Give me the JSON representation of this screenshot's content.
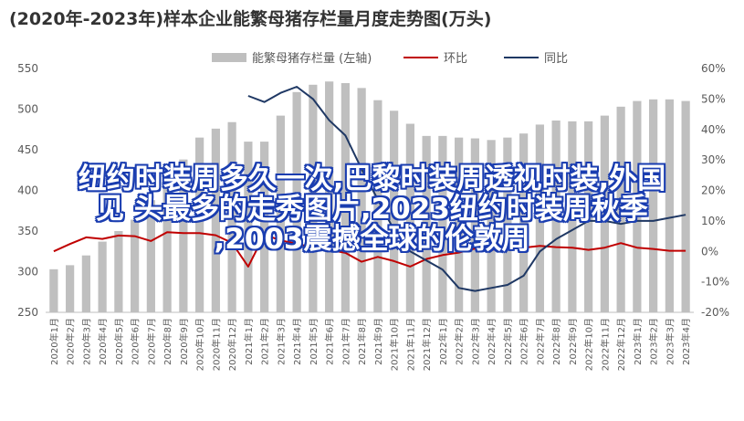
{
  "chart_data": {
    "type": "bar",
    "title": "(2020年-2023年)样本企业能繁母猪存栏量月度走势图(万头)",
    "categories": [
      "2020年1月",
      "2020年2月",
      "2020年3月",
      "2020年4月",
      "2020年5月",
      "2020年6月",
      "2020年7月",
      "2020年8月",
      "2020年9月",
      "2020年10月",
      "2020年11月",
      "2020年12月",
      "2021年1月",
      "2021年2月",
      "2021年3月",
      "2021年4月",
      "2021年5月",
      "2021年6月",
      "2021年7月",
      "2021年8月",
      "2021年9月",
      "2021年10月",
      "2021年11月",
      "2021年12月",
      "2022年1月",
      "2022年2月",
      "2022年3月",
      "2022年4月",
      "2022年5月",
      "2022年6月",
      "2022年7月",
      "2022年8月",
      "2022年9月",
      "2022年10月",
      "2022年11月",
      "2022年12月",
      "2023年1月",
      "2023年2月",
      "2023年3月",
      "2023年4月"
    ],
    "series": [
      {
        "name": "能繁母猪存栏量 (左轴)",
        "axis": "left",
        "kind": "bar",
        "color": "#bfbfbf",
        "values": [
          303,
          308,
          320,
          337,
          350,
          364,
          388,
          413,
          438,
          465,
          476,
          484,
          460,
          460,
          492,
          521,
          530,
          534,
          532,
          526,
          511,
          498,
          482,
          467,
          467,
          465,
          464,
          462,
          465,
          470,
          481,
          486,
          485,
          485,
          492,
          503,
          510,
          512,
          512,
          510
        ]
      },
      {
        "name": "环比",
        "axis": "right",
        "kind": "line",
        "color": "#c00000",
        "values": [
          0.01,
          2.4,
          4.6,
          4.1,
          5.2,
          5.0,
          3.4,
          6.3,
          6.0,
          6.0,
          5.3,
          2.8,
          -5.0,
          5.5,
          3.6,
          2.5,
          1.2,
          0.5,
          -0.5,
          -3.4,
          -1.8,
          -3.2,
          -5.0,
          -2.5,
          -1.2,
          -0.4,
          0.9,
          0.5,
          1.0,
          1.2,
          1.8,
          1.4,
          1.2,
          0.5,
          1.2,
          2.7,
          1.2,
          0.8,
          0.2,
          0.2
        ]
      },
      {
        "name": "同比",
        "axis": "right",
        "kind": "line",
        "color": "#1f3864",
        "values": [
          null,
          null,
          null,
          null,
          null,
          null,
          null,
          null,
          null,
          null,
          null,
          null,
          51,
          49,
          52,
          54,
          50,
          43,
          38,
          27,
          17,
          7,
          0,
          -3,
          -6,
          -12,
          -13,
          -12,
          -11,
          -8,
          0,
          4,
          7,
          10,
          10,
          9,
          10,
          10,
          11,
          12
        ]
      }
    ],
    "ylim_left": [
      250,
      550
    ],
    "yticks_left": [
      "250",
      "300",
      "350",
      "400",
      "450",
      "500",
      "550"
    ],
    "ylim_right": [
      -20,
      60
    ],
    "yticks_right": [
      "-20%",
      "-10%",
      "0%",
      "10%",
      "20%",
      "30%",
      "40%",
      "50%",
      "60%"
    ],
    "legend": "top",
    "grid": false
  },
  "overlay_text": {
    "line1": "纽约时装周多久一次,巴黎时装周透视时装,外国",
    "line2": "见 头最多的走秀图片,2023纽约时装周秋季",
    "line3": ",2003震撼全球的伦敦周"
  }
}
